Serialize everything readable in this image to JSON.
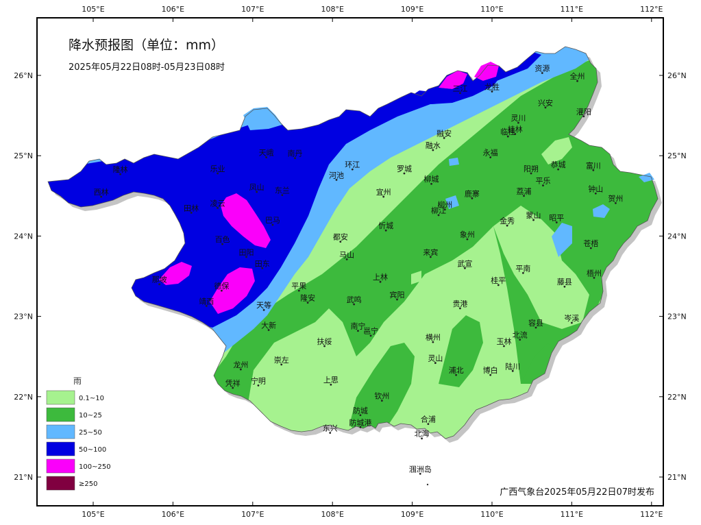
{
  "title": "降水预报图（单位：mm）",
  "period": "2025年05月22日08时-05月23日08时",
  "footer": "广西气象台2025年05月22日07时发布",
  "axes": {
    "x_ticks": [
      "105°E",
      "106°E",
      "107°E",
      "108°E",
      "109°E",
      "110°E",
      "111°E",
      "112°E"
    ],
    "y_ticks": [
      "26°N",
      "25°N",
      "24°N",
      "23°N",
      "22°N",
      "21°N"
    ]
  },
  "legend": {
    "title": "雨",
    "items": [
      {
        "label": "0.1~10",
        "color": "#a6f28f"
      },
      {
        "label": "10~25",
        "color": "#3dba3d"
      },
      {
        "label": "25~50",
        "color": "#61b8ff"
      },
      {
        "label": "50~100",
        "color": "#0000e1"
      },
      {
        "label": "100~250",
        "color": "#fa00fa"
      },
      {
        "label": "≥250",
        "color": "#800040"
      }
    ]
  },
  "cities": [
    {
      "name": "资源",
      "lon": 110.63,
      "lat": 26.03
    },
    {
      "name": "全州",
      "lon": 111.07,
      "lat": 25.93
    },
    {
      "name": "兴安",
      "lon": 110.67,
      "lat": 25.6
    },
    {
      "name": "灌阳",
      "lon": 111.15,
      "lat": 25.49
    },
    {
      "name": "龙胜",
      "lon": 110.0,
      "lat": 25.8
    },
    {
      "name": "三江",
      "lon": 109.6,
      "lat": 25.78
    },
    {
      "name": "灵川",
      "lon": 110.33,
      "lat": 25.41
    },
    {
      "name": "桂林",
      "lon": 110.29,
      "lat": 25.27
    },
    {
      "name": "临桂",
      "lon": 110.2,
      "lat": 25.24
    },
    {
      "name": "融安",
      "lon": 109.4,
      "lat": 25.22
    },
    {
      "name": "融水",
      "lon": 109.26,
      "lat": 25.07
    },
    {
      "name": "永福",
      "lon": 109.98,
      "lat": 24.98
    },
    {
      "name": "阳朔",
      "lon": 110.49,
      "lat": 24.78
    },
    {
      "name": "恭城",
      "lon": 110.83,
      "lat": 24.83
    },
    {
      "name": "富川",
      "lon": 111.27,
      "lat": 24.82
    },
    {
      "name": "平乐",
      "lon": 110.64,
      "lat": 24.63
    },
    {
      "name": "钟山",
      "lon": 111.3,
      "lat": 24.53
    },
    {
      "name": "贺州",
      "lon": 111.55,
      "lat": 24.41
    },
    {
      "name": "荔浦",
      "lon": 110.4,
      "lat": 24.5
    },
    {
      "name": "天峨",
      "lon": 107.17,
      "lat": 24.98
    },
    {
      "name": "南丹",
      "lon": 107.53,
      "lat": 24.97
    },
    {
      "name": "环江",
      "lon": 108.25,
      "lat": 24.83
    },
    {
      "name": "罗城",
      "lon": 108.9,
      "lat": 24.78
    },
    {
      "name": "隆林",
      "lon": 105.34,
      "lat": 24.77
    },
    {
      "name": "乐业",
      "lon": 106.56,
      "lat": 24.78
    },
    {
      "name": "河池",
      "lon": 108.05,
      "lat": 24.7
    },
    {
      "name": "西林",
      "lon": 105.1,
      "lat": 24.49
    },
    {
      "name": "凤山",
      "lon": 107.05,
      "lat": 24.55
    },
    {
      "name": "东兰",
      "lon": 107.37,
      "lat": 24.51
    },
    {
      "name": "宜州",
      "lon": 108.64,
      "lat": 24.49
    },
    {
      "name": "柳城",
      "lon": 109.24,
      "lat": 24.65
    },
    {
      "name": "鹿寨",
      "lon": 109.75,
      "lat": 24.47
    },
    {
      "name": "凌云",
      "lon": 106.56,
      "lat": 24.35
    },
    {
      "name": "田林",
      "lon": 106.23,
      "lat": 24.29
    },
    {
      "name": "巴马",
      "lon": 107.25,
      "lat": 24.14
    },
    {
      "name": "柳州",
      "lon": 109.41,
      "lat": 24.33
    },
    {
      "name": "柳江",
      "lon": 109.33,
      "lat": 24.26
    },
    {
      "name": "金秀",
      "lon": 110.19,
      "lat": 24.13
    },
    {
      "name": "蒙山",
      "lon": 110.52,
      "lat": 24.2
    },
    {
      "name": "昭平",
      "lon": 110.81,
      "lat": 24.17
    },
    {
      "name": "忻城",
      "lon": 108.67,
      "lat": 24.07
    },
    {
      "name": "百色",
      "lon": 106.62,
      "lat": 23.9
    },
    {
      "name": "都安",
      "lon": 108.1,
      "lat": 23.93
    },
    {
      "name": "象州",
      "lon": 109.69,
      "lat": 23.96
    },
    {
      "name": "苍梧",
      "lon": 111.24,
      "lat": 23.85
    },
    {
      "name": "田阳",
      "lon": 106.92,
      "lat": 23.74
    },
    {
      "name": "马山",
      "lon": 108.18,
      "lat": 23.71
    },
    {
      "name": "田东",
      "lon": 107.12,
      "lat": 23.6
    },
    {
      "name": "来宾",
      "lon": 109.23,
      "lat": 23.74
    },
    {
      "name": "武宣",
      "lon": 109.66,
      "lat": 23.6
    },
    {
      "name": "平南",
      "lon": 110.39,
      "lat": 23.54
    },
    {
      "name": "梧州",
      "lon": 111.28,
      "lat": 23.48
    },
    {
      "name": "那坡",
      "lon": 105.83,
      "lat": 23.4
    },
    {
      "name": "上林",
      "lon": 108.6,
      "lat": 23.43
    },
    {
      "name": "桂平",
      "lon": 110.08,
      "lat": 23.39
    },
    {
      "name": "藤县",
      "lon": 110.91,
      "lat": 23.37
    },
    {
      "name": "德保",
      "lon": 106.61,
      "lat": 23.32
    },
    {
      "name": "平果",
      "lon": 107.58,
      "lat": 23.32
    },
    {
      "name": "宾阳",
      "lon": 108.81,
      "lat": 23.21
    },
    {
      "name": "隆安",
      "lon": 107.69,
      "lat": 23.17
    },
    {
      "name": "靖西",
      "lon": 106.42,
      "lat": 23.13
    },
    {
      "name": "天等",
      "lon": 107.14,
      "lat": 23.08
    },
    {
      "name": "武鸣",
      "lon": 108.27,
      "lat": 23.15
    },
    {
      "name": "贵港",
      "lon": 109.6,
      "lat": 23.1
    },
    {
      "name": "岑溪",
      "lon": 111.0,
      "lat": 22.92
    },
    {
      "name": "容县",
      "lon": 110.55,
      "lat": 22.86
    },
    {
      "name": "大新",
      "lon": 107.2,
      "lat": 22.83
    },
    {
      "name": "南宁",
      "lon": 108.32,
      "lat": 22.82
    },
    {
      "name": "邕宁",
      "lon": 108.48,
      "lat": 22.76
    },
    {
      "name": "横州",
      "lon": 109.26,
      "lat": 22.68
    },
    {
      "name": "北流",
      "lon": 110.35,
      "lat": 22.71
    },
    {
      "name": "玉林",
      "lon": 110.15,
      "lat": 22.63
    },
    {
      "name": "扶绥",
      "lon": 107.9,
      "lat": 22.63
    },
    {
      "name": "崇左",
      "lon": 107.36,
      "lat": 22.4
    },
    {
      "name": "灵山",
      "lon": 109.29,
      "lat": 22.42
    },
    {
      "name": "龙州",
      "lon": 106.85,
      "lat": 22.34
    },
    {
      "name": "浦北",
      "lon": 109.55,
      "lat": 22.27
    },
    {
      "name": "博白",
      "lon": 109.98,
      "lat": 22.27
    },
    {
      "name": "陆川",
      "lon": 110.26,
      "lat": 22.32
    },
    {
      "name": "上思",
      "lon": 107.98,
      "lat": 22.15
    },
    {
      "name": "宁明",
      "lon": 107.07,
      "lat": 22.14
    },
    {
      "name": "凭祥",
      "lon": 106.75,
      "lat": 22.11
    },
    {
      "name": "钦州",
      "lon": 108.62,
      "lat": 21.95
    },
    {
      "name": "防城",
      "lon": 108.35,
      "lat": 21.77
    },
    {
      "name": "合浦",
      "lon": 109.2,
      "lat": 21.66
    },
    {
      "name": "防城港",
      "lon": 108.35,
      "lat": 21.62
    },
    {
      "name": "东兴",
      "lon": 107.97,
      "lat": 21.55
    },
    {
      "name": "北海",
      "lon": 109.12,
      "lat": 21.48
    },
    {
      "name": "涠洲岛",
      "lon": 109.1,
      "lat": 21.04
    }
  ]
}
